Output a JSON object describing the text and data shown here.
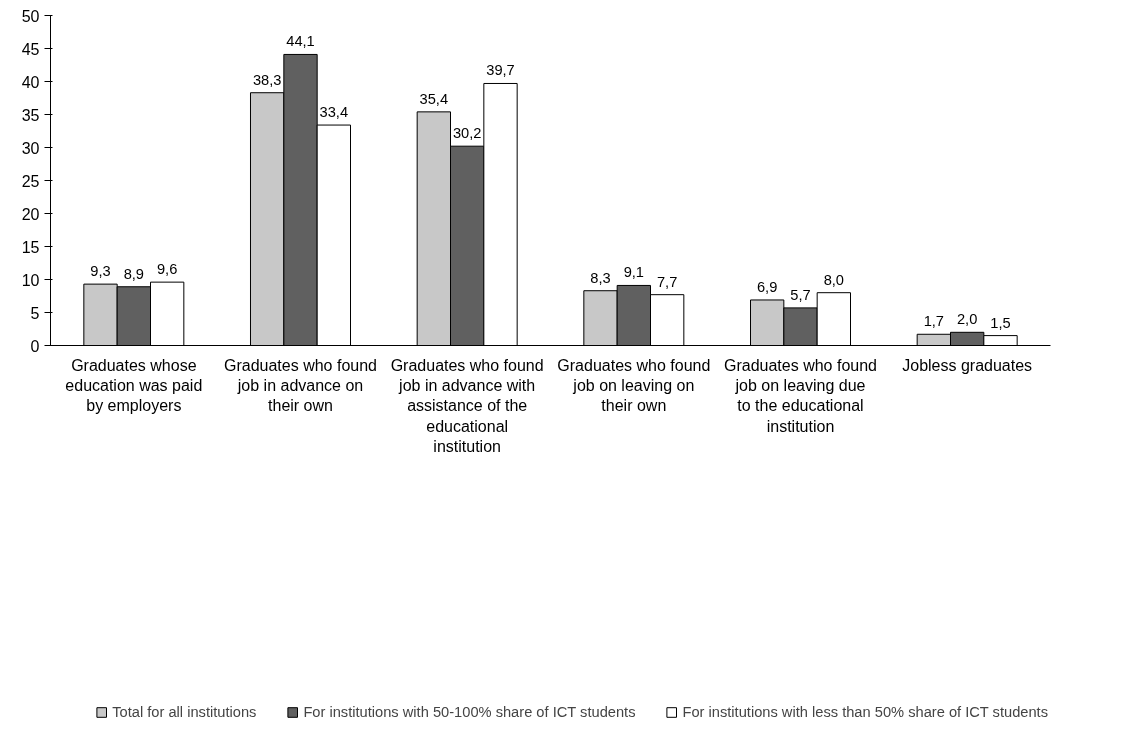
{
  "chart_data": {
    "type": "bar",
    "categories": [
      "Graduates whose education was paid by employers",
      "Graduates who found job in advance on their own",
      "Graduates who found job in advance with assistance of the educational institution",
      "Graduates who found job on leaving on their own",
      "Graduates who found job on leaving due to the educational institution",
      "Jobless graduates"
    ],
    "series": [
      {
        "name": "Total for all institutions",
        "color": "#c8c8c8",
        "values": [
          9.3,
          38.3,
          35.4,
          8.3,
          6.9,
          1.7
        ],
        "value_labels": [
          "9,3",
          "38,3",
          "35,4",
          "8,3",
          "6,9",
          "1,7"
        ]
      },
      {
        "name": "For institutions with 50-100% share of ICT students",
        "color": "#606060",
        "values": [
          8.9,
          44.1,
          30.2,
          9.1,
          5.7,
          2.0
        ],
        "value_labels": [
          "8,9",
          "44,1",
          "30,2",
          "9,1",
          "5,7",
          "2,0"
        ]
      },
      {
        "name": "For institutions with less than 50% share of ICT students",
        "color": "#ffffff",
        "values": [
          9.6,
          33.4,
          39.7,
          7.7,
          8.0,
          1.5
        ],
        "value_labels": [
          "9,6",
          "33,4",
          "39,7",
          "7,7",
          "8,0",
          "1,5"
        ]
      }
    ],
    "ylim": [
      0,
      50
    ],
    "yticks": [
      0,
      5,
      10,
      15,
      20,
      25,
      30,
      35,
      40,
      45,
      50
    ],
    "grid": false,
    "legend": "bottom"
  }
}
